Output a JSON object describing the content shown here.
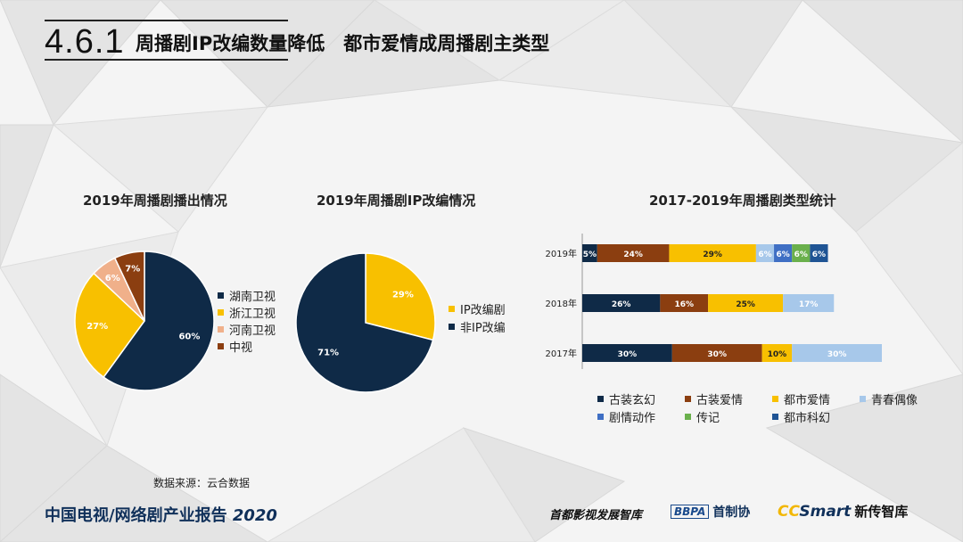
{
  "header": {
    "section_number": "4.6.1",
    "title": "周播剧IP改编数量降低　都市爱情成周播剧主类型"
  },
  "colors": {
    "navy": "#0f2a47",
    "yellow": "#f8c000",
    "brown": "#8b3e10",
    "peach": "#f0b08a",
    "light_blue": "#a7c8ea",
    "blue": "#3f6fc4",
    "green": "#6ab04c",
    "dark_blue": "#1f5494"
  },
  "chart_data": [
    {
      "type": "pie",
      "title": "2019年周播剧播出情况",
      "labels": [
        "湖南卫视",
        "浙江卫视",
        "河南卫视",
        "中视"
      ],
      "values": [
        60,
        27,
        6,
        7
      ],
      "data_labels": [
        "60%",
        "27%",
        "6%",
        "7%"
      ],
      "colors": [
        "#0f2a47",
        "#f8c000",
        "#f0b08a",
        "#8b3e10"
      ],
      "legend": "right"
    },
    {
      "type": "pie",
      "title": "2019年周播剧IP改编情况",
      "labels": [
        "IP改编剧",
        "非IP改编"
      ],
      "values": [
        29,
        71
      ],
      "data_labels": [
        "29%",
        "71%"
      ],
      "colors": [
        "#f8c000",
        "#0f2a47"
      ],
      "legend": "right"
    },
    {
      "type": "bar",
      "orientation": "horizontal",
      "stacked": true,
      "title": "2017-2019年周播剧类型统计",
      "categories": [
        "2019年",
        "2018年",
        "2017年"
      ],
      "series": [
        {
          "name": "古装玄幻",
          "color": "#0f2a47",
          "values": [
            5,
            26,
            30
          ],
          "labels": [
            "5%",
            "26%",
            "30%"
          ]
        },
        {
          "name": "古装爱情",
          "color": "#8b3e10",
          "values": [
            24,
            16,
            30
          ],
          "labels": [
            "24%",
            "16%",
            "30%"
          ]
        },
        {
          "name": "都市爱情",
          "color": "#f8c000",
          "values": [
            29,
            25,
            10
          ],
          "labels": [
            "29%",
            "25%",
            "10%"
          ]
        },
        {
          "name": "青春偶像",
          "color": "#a7c8ea",
          "values": [
            6,
            17,
            30
          ],
          "labels": [
            "6%",
            "17%",
            "30%"
          ]
        },
        {
          "name": "剧情动作",
          "color": "#3f6fc4",
          "values": [
            6,
            0,
            0
          ],
          "labels": [
            "6%",
            "",
            ""
          ]
        },
        {
          "name": "传记",
          "color": "#6ab04c",
          "values": [
            6,
            0,
            0
          ],
          "labels": [
            "6%",
            "",
            ""
          ]
        },
        {
          "name": "都市科幻",
          "color": "#1f5494",
          "values": [
            6,
            0,
            0
          ],
          "labels": [
            "6%",
            "",
            ""
          ]
        }
      ],
      "legend": "bottom"
    }
  ],
  "footer": {
    "source": "数据来源：云合数据",
    "report_title": "中国电视/网络剧产业报告",
    "report_year": "2020",
    "logo1": "首都影视发展智库",
    "logo2_box": "BBPA",
    "logo2_text": "首制协",
    "logo3_cc": "CC",
    "logo3_smart": "Smart",
    "logo3_cn": "新传智库"
  }
}
